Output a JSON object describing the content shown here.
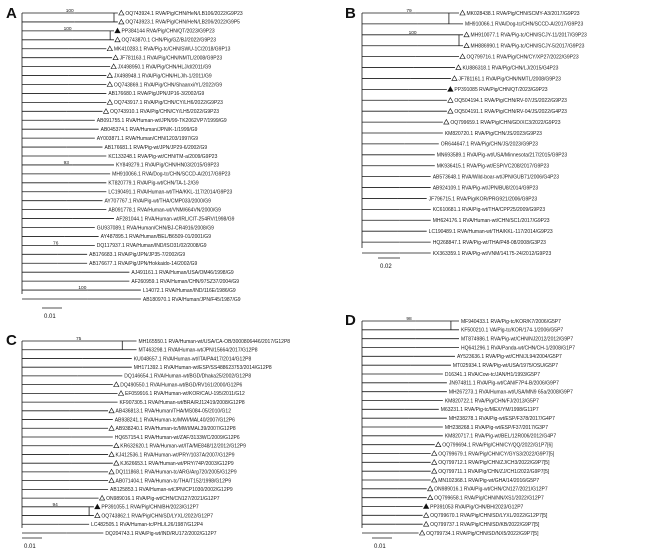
{
  "panels": [
    {
      "id": "a",
      "label": "A",
      "scale": "0.01",
      "tips": [
        {
          "text": "OQ743924.1 RVA/Pig/CHN/HeN/LB106/2022/G9P23",
          "marker": "open",
          "mx": 0.52,
          "bs": "100",
          "hx": 0.5,
          "hs": 2
        },
        {
          "text": "OQ743923.1 RVA/Pig/CHN/HeN/LB206/2022/G9P5",
          "marker": "open",
          "mx": 0.52
        },
        {
          "text": "PP384144 RVA/Pig/CHN/QT/2023/G9P23",
          "marker": "filled",
          "mx": 0.5,
          "bs": "100",
          "hx": 0.48,
          "hs": 2
        },
        {
          "text": "OQ743870.1 CHN/Pig/GZ/BJ/2022/G9P23",
          "marker": "open",
          "mx": 0.5
        },
        {
          "text": "MK410283.1 RVA/Pig-tc/CHN/SWU-1C/2018/G9P13",
          "marker": "open",
          "mx": 0.46
        },
        {
          "text": "JF781163.1 RVA/Pig/CHN/NMTL/2008/G9P23",
          "marker": "open",
          "mx": 0.49
        },
        {
          "text": "JX498950.1 RVA/Pig/CHN/HLJ/d/2011/G9",
          "marker": "open",
          "mx": 0.48
        },
        {
          "text": "JX498948.1 RVA/Pig/CHN/HLJ/h-1/2011/G9",
          "marker": "open",
          "mx": 0.46
        },
        {
          "text": "OQ743869.1 RVA/Pig/CHN/Shaanxi/YL/2022/G9",
          "marker": "open",
          "mx": 0.46
        },
        {
          "text": "AB176680.1 RVA/Pig/JPN/JP16-3/2002/G9",
          "mx": 0.46
        },
        {
          "text": "OQ743917.1 RVA/Pig/CHN/CY/LH6/2022/G9P23",
          "marker": "open",
          "mx": 0.46
        },
        {
          "text": "OQ743910.1 RVA/Pig/CHN/CY/LH5/2022/G9P23",
          "marker": "open",
          "mx": 0.44
        },
        {
          "text": "AB091755.1 RVA/Human-wt/JPN/99-TK2062VP7/1999/G9",
          "mx": 0.4
        },
        {
          "text": "AB045374.1 RVA/Human/JPN/K-1/1999/G9",
          "mx": 0.42
        },
        {
          "text": "AY003871.1 RVA/Human/CHN/1203/1997/G9",
          "mx": 0.4
        },
        {
          "text": "AB176681.1 RVA/Pig-wt/JPN/JP29-6/2002/G9",
          "mx": 0.44
        },
        {
          "text": "KC133248.1 RVA/Pig-wt/CHN/TM-a/2009/G9P23",
          "mx": 0.46
        },
        {
          "text": "KY849279.1 RVA/Pig/CHN/HN03/2015/G9P23",
          "mx": 0.5,
          "bs": "93"
        },
        {
          "text": "MH910066.1 RVA/Dog-tc/CHN/SCCD-A/2017/G9P23",
          "mx": 0.48
        },
        {
          "text": "KT820779.1 RVA/Pig-wt/CHN/TA-1-2/G9",
          "mx": 0.46
        },
        {
          "text": "LC190491.1 RVA/Human-wt/THA/KKL-117/2014/G9P23",
          "mx": 0.46
        },
        {
          "text": "AY707767.1 RVA/Pig-wt/THA/CMP033/2000/G9",
          "mx": 0.44
        },
        {
          "text": "AB091778.1 RVA/Human-wt/VNM/664VN/2000/G9",
          "mx": 0.46
        },
        {
          "text": "AF281044.1 RVA/Human-wt/IRL/CIT-254RV/1998/G9",
          "mx": 0.5
        },
        {
          "text": "GU937089.1 RVA/Human/CHN/BJ-CR4916/2008/G9",
          "mx": 0.4
        },
        {
          "text": "AY487895.1 RVA/Human/BEL/B6509-01/2001/G9",
          "mx": 0.42
        },
        {
          "text": "DQ117937.1 RVA/Human/IND/ISO31/02/2008/G9",
          "mx": 0.4,
          "bs": "76"
        },
        {
          "text": "AB176683.1 RVA/Pig/JPN/JP35-7/2002/G9",
          "mx": 0.36
        },
        {
          "text": "AB176677.1 RVA/Pig/JPN/Hokkaido-14/2002/G9",
          "mx": 0.36
        },
        {
          "text": "AJ491161.1 RVA/Human/USA/OM46/1998/G9",
          "mx": 0.58
        },
        {
          "text": "AF260959.1 RVA/Human/CHN/97SZ37/2004/G9",
          "mx": 0.58
        },
        {
          "text": "L14072.1 RVA/Human/IND/116E/1986/G9",
          "mx": 0.64,
          "bs": "100"
        },
        {
          "text": "AB180970.1 RVA/Human/JPN/F45/1987/G9",
          "mx": 0.64
        }
      ]
    },
    {
      "id": "b",
      "label": "B",
      "scale": "0.02",
      "tips": [
        {
          "text": "MK028438.1 RVA/Pig/CHN/SCMY-A3/2017/G9P23",
          "marker": "open",
          "mx": 0.5,
          "bs": "79",
          "hx": 0.45,
          "hs": 2
        },
        {
          "text": "MH910066.1 RVA/Dog-tc/CHN/SCCD-A/2017/G9P23",
          "mx": 0.52
        },
        {
          "text": "MH910077.1 RVA/Pig-tc/CHN/SCJY-11/2017/G9P23",
          "marker": "open",
          "mx": 0.52,
          "bs": "100",
          "hx": 0.5,
          "hs": 2
        },
        {
          "text": "MH886990.1 RVA/Pig-tc/CHN/SCJY-5/2017/G9P23",
          "marker": "open",
          "mx": 0.52
        },
        {
          "text": "OQ799716.1 RVA/Pig/CHN/CY/XP27/2022/G9P23",
          "marker": "open",
          "mx": 0.5
        },
        {
          "text": "KU886318.1 RVA/Pig/CHN/LJ/2015/G4P23",
          "marker": "open",
          "mx": 0.48
        },
        {
          "text": "JF781161.1 RVA/Pig/CHN/NMTL/2008/G9P23",
          "marker": "open",
          "mx": 0.46
        },
        {
          "text": "PP391085 RVA/Pig/CHN/QT/2023/G9P23",
          "marker": "filled",
          "mx": 0.44
        },
        {
          "text": "OQ504194.1 RVA/Pig/CHN/RV-07/JS/2022/G9P23",
          "marker": "open",
          "mx": 0.44
        },
        {
          "text": "OQ504191.1 RVA/Pig/CHN/RV-04/JS/2022/G4P23",
          "marker": "open",
          "mx": 0.44
        },
        {
          "text": "OQ799659.1 RVA/Pig/CHN/GD/XC3/2022/G9P23",
          "marker": "open",
          "mx": 0.42
        },
        {
          "text": "KM820720.1 RVA/Pig/CHN/JS/2023/G9P23",
          "mx": 0.42
        },
        {
          "text": "OR644647.1 RVA/Pig/CHN/JS/2023/G9P23",
          "mx": 0.4
        },
        {
          "text": "MN693589.1 RVA/Pig-wt/USA/Minnesota/217/2015/G9P23",
          "mx": 0.38
        },
        {
          "text": "MK936415.1 RVA/Pig-wt/ESP/VC208/2017/G9P23",
          "mx": 0.38
        },
        {
          "text": "AB573648.1 RVA/Wild-boar-wt/JPN/GUB71/2006/G4P23",
          "mx": 0.36
        },
        {
          "text": "AB924109.1 RVA/Pig-wt/JPN/BU8/2014/G9P23",
          "mx": 0.36
        },
        {
          "text": "JF796715.1 RVA/Pig/KOR/PRG921/2006/G9P23",
          "mx": 0.34
        },
        {
          "text": "KC610681.1 RVA/Pig-wt/THA/CPP25/2009/G9P23",
          "mx": 0.36
        },
        {
          "text": "MH624176.1 RVA/Human-wt/CHN/SC1/2017/G9P23",
          "mx": 0.36
        },
        {
          "text": "LC190489.1 RVA/Human-wt/THA/KKL-117/2014/G9P23",
          "mx": 0.34
        },
        {
          "text": "HQ268847.1 RVA/Pig-wt/THA/P48-08/2008/G3P23",
          "mx": 0.36
        },
        {
          "text": "KX363359.1 RVA/Pig-wt/VNM/14175-24/2012/G9P23",
          "mx": 0.36
        }
      ]
    },
    {
      "id": "c",
      "label": "C",
      "scale": "0.01",
      "tips": [
        {
          "text": "MH165550.1 RVA/Human-wt/USA/CA-OB/3000806446/2017/G12P8",
          "mx": 0.5,
          "bs": "75",
          "hx": 0.44,
          "hs": 2
        },
        {
          "text": "MT463298.1 RVA/Human-wt/JPN/15664/2017/G12P8",
          "mx": 0.5
        },
        {
          "text": "KU048657.1 RVA/Human-wt/ITA/PA417/2014/G12P8",
          "mx": 0.48
        },
        {
          "text": "MH171392.1 RVA/Human-wt/ESP/SS488623753/2014/G12P8",
          "mx": 0.48
        },
        {
          "text": "DQ146654.1 RVA/Human-wt/BGD/Dhaka25/2002/G12P8",
          "mx": 0.44
        },
        {
          "text": "DQ490550.1 RVA/Human-wt/BGD/RV161/2000/G12P6",
          "marker": "open",
          "mx": 0.4
        },
        {
          "text": "EF059916.1 RVA/Human-wt/KOR/CAU-195/2011/G12",
          "marker": "open",
          "mx": 0.42
        },
        {
          "text": "KF907305.1 RVA/Human-wt/BRA/RJ12419/2008/G12P8",
          "mx": 0.42
        },
        {
          "text": "AB436813.1 RVA/Human/THA/MS084-05/2010/G12",
          "marker": "open",
          "mx": 0.38
        },
        {
          "text": "AB938241.1 RVA/Human-tc/MWI/MAL40/2007/G12P6",
          "mx": 0.4
        },
        {
          "text": "AB938240.1 RVA/Human-tc/MWI/MAL39/2007/G12P8",
          "marker": "open",
          "mx": 0.38
        },
        {
          "text": "HQ657154.1 RVA/Human-wt/ZAF/3133WC/2009/G12P6",
          "mx": 0.4
        },
        {
          "text": "KR632620.1 RVA/Human-wt/ITA/ME848/12/2012/G12P9",
          "marker": "open",
          "mx": 0.4
        },
        {
          "text": "KJ412536.1 RVA/Human-wt/PRY/1037A/2007/G12P9",
          "marker": "open",
          "mx": 0.38
        },
        {
          "text": "KJ626653.1 RVA/Human-wt/PRY/74P/2003/G12P9",
          "marker": "open",
          "mx": 0.4
        },
        {
          "text": "DQ111868.1 RVA/Human-tc/ARG/Arg720/2005/G12P9",
          "marker": "open",
          "mx": 0.38
        },
        {
          "text": "AB071404.1 RVA/Human-tc/THA/T152/1998/G12P9",
          "marker": "open",
          "mx": 0.38
        },
        {
          "text": "AB125853.1 RVA/Human-wt/JPN/CP1030/2002/G12P9",
          "mx": 0.38
        },
        {
          "text": "ON989016.1 RVA/Pig-wt/CHN/CN127/2021/G12P7",
          "marker": "open",
          "mx": 0.34
        },
        {
          "text": "PP391055.1 RVA/Pig/CHN/BH/2023/G12P7",
          "marker": "filled",
          "mx": 0.32,
          "bs": "94",
          "hx": 0.3,
          "hs": 2
        },
        {
          "text": "OQ743862.1 RVA/Pig/CHN/SD/LYXL/2022/G12P7",
          "marker": "open",
          "mx": 0.32
        },
        {
          "text": "LC482505.1 RVA/Human-tc/PHL/L26/1987/G12P4",
          "mx": 0.3
        },
        {
          "text": "DQ204743.1 RVA/Pig-wt/IND/RU172/2002/G12P7",
          "mx": 0.36
        }
      ]
    },
    {
      "id": "d",
      "label": "D",
      "scale": "0.01",
      "tips": [
        {
          "text": "MF940433.1 RVA/Pig-tc/KOR/K7/2006/G5P7",
          "mx": 0.5,
          "bs": "98",
          "hx": 0.46,
          "hs": 2
        },
        {
          "text": "KF500210.1 VA/Pig-tc/KOR/174-1/2006/G5P7",
          "mx": 0.5
        },
        {
          "text": "MT874986.1 RVA/Pig-wt/CHN/NJ2012/2012/G9P7",
          "mx": 0.5
        },
        {
          "text": "HQ641296.1 RVA/Panda-wt/CHN/CH-1/2008/G1P7",
          "mx": 0.5
        },
        {
          "text": "AY523636.1 RVA/Pig-wt/CHN/JL94/2004/G5P7",
          "mx": 0.48
        },
        {
          "text": "MT025934.1 RVA/Pig-wt/USA/1975/OSU/G5P7",
          "mx": 0.46
        },
        {
          "text": "D16341.1 RVA/Cow-tc/JAN/H1/1993/G5P7",
          "mx": 0.42
        },
        {
          "text": "JN974811.1 RVA/Pig-wt/CAN/F7P4-B/2006/G9P7",
          "mx": 0.44
        },
        {
          "text": "MH267273.1 RVA/Human-wt/USA/MN9 65a/2008/G9P7",
          "mx": 0.44
        },
        {
          "text": "KM820722.1 RVA/Pig/CHN/FJ/2013/G5P7",
          "mx": 0.42
        },
        {
          "text": "M63231.1 RVA/Pig-tc/MEX/YM/1998/G11P7",
          "mx": 0.4
        },
        {
          "text": "MH238278.1 RVA/Pig-wt/ESP/F378/2017/G4P7",
          "mx": 0.44
        },
        {
          "text": "MH238268.1 RVA/Pig-wt/ESP/F37/2017/G3P7",
          "mx": 0.42
        },
        {
          "text": "KM820717.1 RVA/Pig-wt/BEL/12R006/2012/G4P7",
          "mx": 0.42
        },
        {
          "text": "OQ799694.1 RVA/Pig/CHN/CY/QQ/2022/G1P7[6]",
          "marker": "open",
          "mx": 0.38
        },
        {
          "text": "OQ799679.1 RVA/Pig/CHN/CY/GYS3/2022/G9P7[5]",
          "marker": "open",
          "mx": 0.36
        },
        {
          "text": "OQ799712.1 RVA/Pig/CHN/ZJ/CH3/2022/G9P7[5]",
          "marker": "open",
          "mx": 0.36
        },
        {
          "text": "OQ799711.1 RVA/Pig/CHN/ZJ/CH1/2022/G9P7[5]",
          "marker": "open",
          "mx": 0.36
        },
        {
          "text": "MN102368.1 RVA/Pig-wt/GHA/14/2016/G5P7",
          "marker": "open",
          "mx": 0.36
        },
        {
          "text": "ON989016.1 RVA/Pig-wt/CHN/CN127/2021/G12P7",
          "marker": "open",
          "mx": 0.34
        },
        {
          "text": "OQ799658.1 RVA/Pig/CHN/NN/XS1/2022/G12P7",
          "marker": "open",
          "mx": 0.34
        },
        {
          "text": "PP391053 RVA/Pig/CHN/BH/2023/G12P7",
          "marker": "filled",
          "mx": 0.32
        },
        {
          "text": "OQ799670.1 RVA/Pig/CHN/SD/LYXL/2022/G12P7[5]",
          "marker": "open",
          "mx": 0.32
        },
        {
          "text": "OQ799737.1 RVA/Pig/CHN/SD/KB/2022/G9P7[5]",
          "marker": "open",
          "mx": 0.32
        },
        {
          "text": "OQ799734.1 RVA/Pig/CHN/SD/NX5/2022/G9P7[5]",
          "marker": "open",
          "mx": 0.3
        }
      ]
    }
  ]
}
